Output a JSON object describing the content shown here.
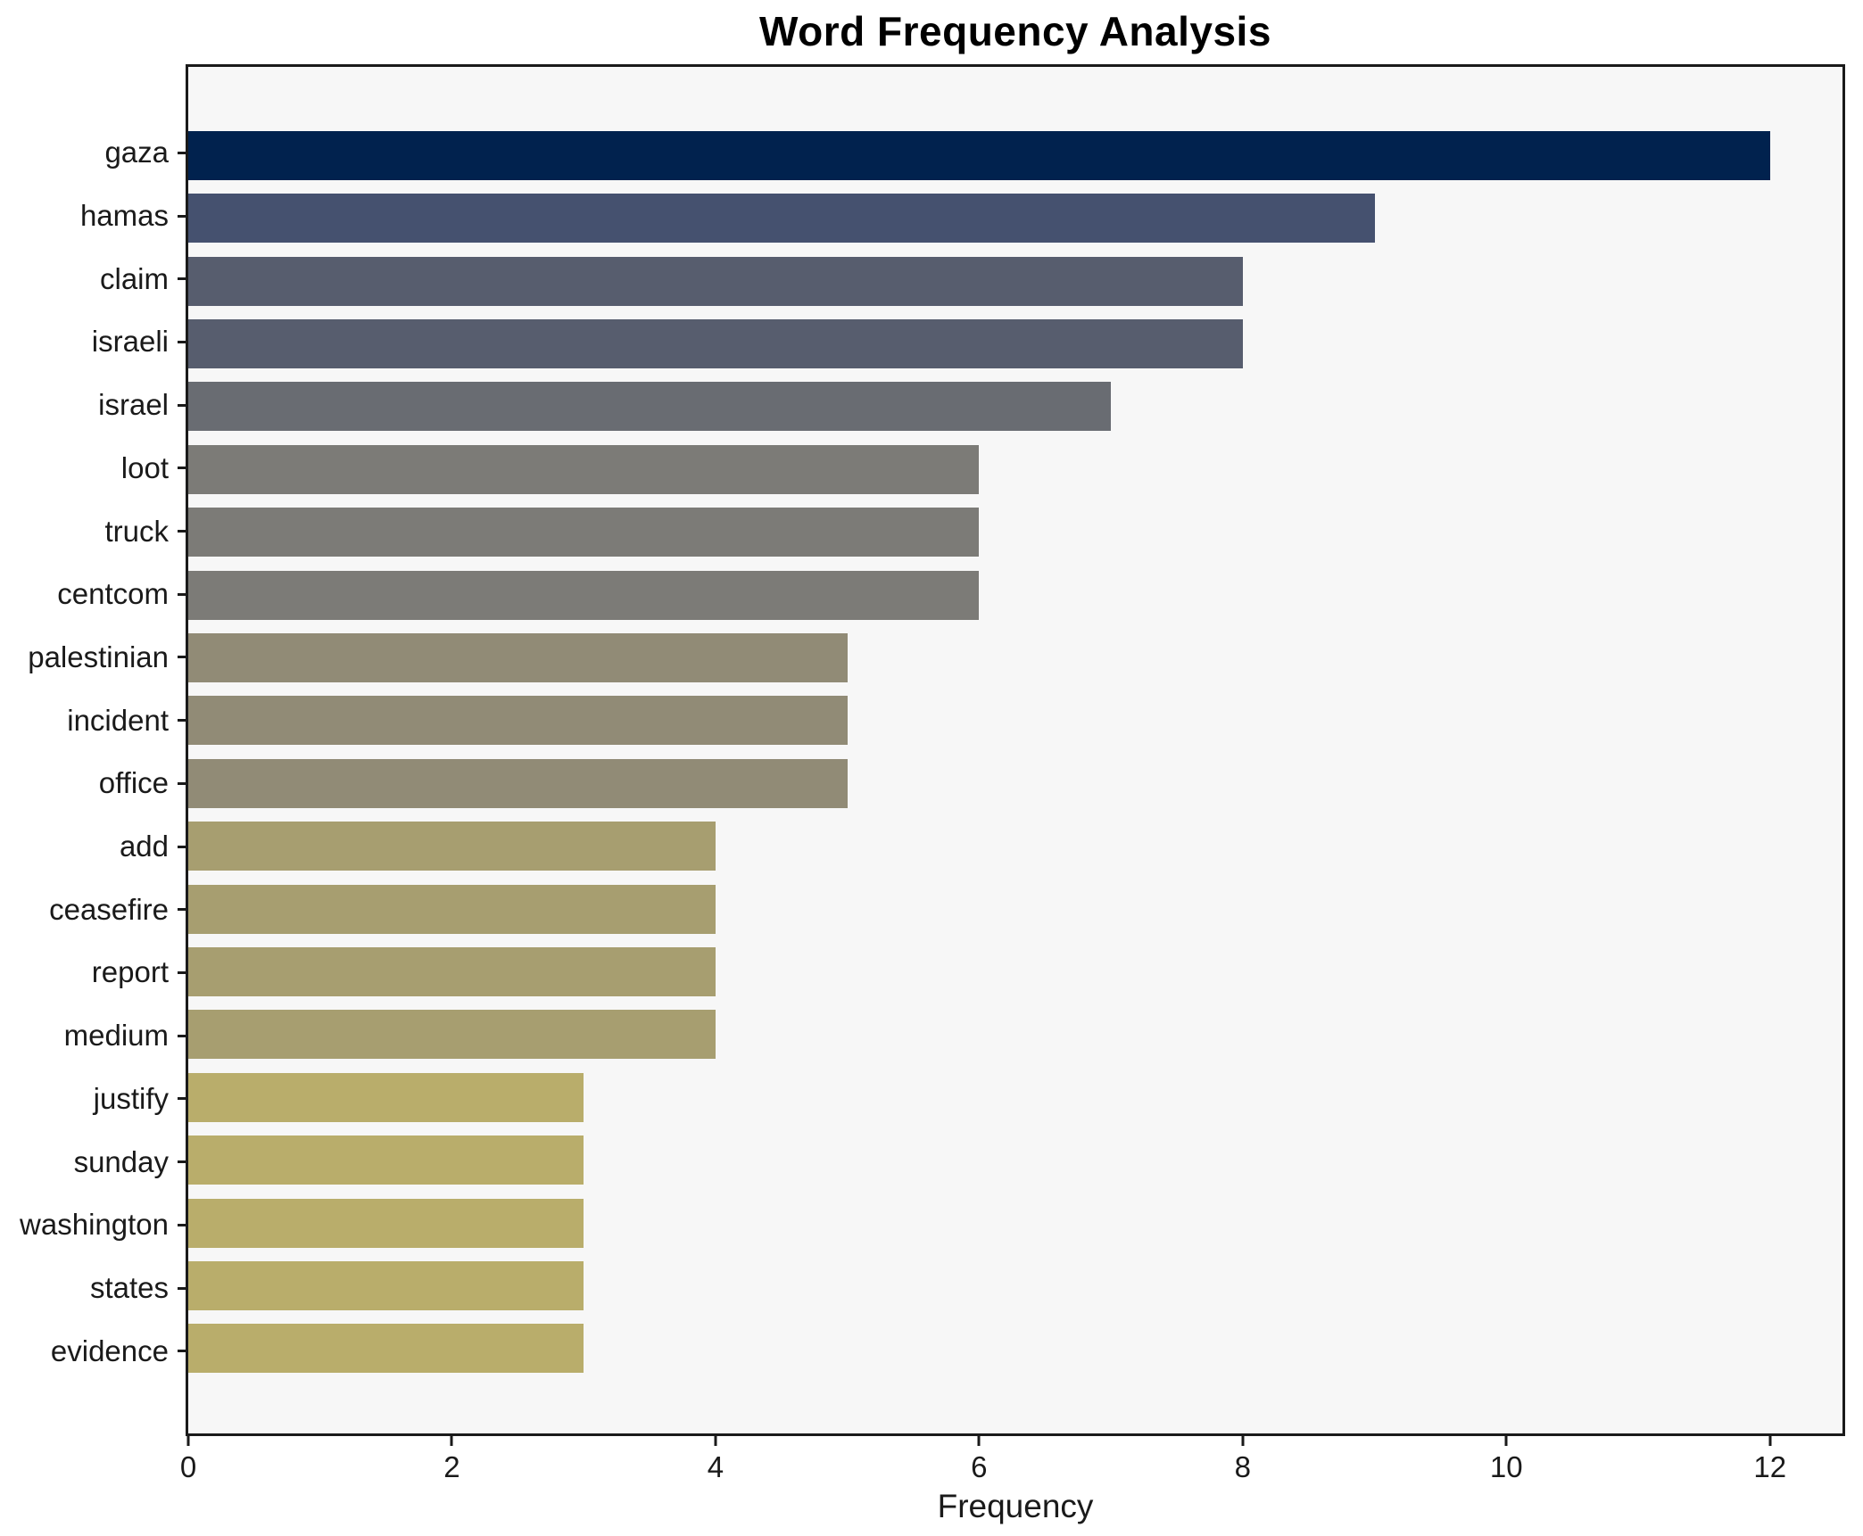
{
  "title": "Word Frequency Analysis",
  "chart_data": {
    "type": "bar",
    "orientation": "horizontal",
    "title": "Word Frequency Analysis",
    "xlabel": "Frequency",
    "ylabel": "",
    "categories": [
      "gaza",
      "hamas",
      "claim",
      "israeli",
      "israel",
      "loot",
      "truck",
      "centcom",
      "palestinian",
      "incident",
      "office",
      "add",
      "ceasefire",
      "report",
      "medium",
      "justify",
      "sunday",
      "washington",
      "states",
      "evidence"
    ],
    "values": [
      12,
      9,
      8,
      8,
      7,
      6,
      6,
      6,
      5,
      5,
      5,
      4,
      4,
      4,
      4,
      3,
      3,
      3,
      3,
      3
    ],
    "bar_colors": [
      "#01224e",
      "#45516f",
      "#575d6e",
      "#575d6e",
      "#696c72",
      "#7c7b77",
      "#7c7b77",
      "#7c7b77",
      "#918b76",
      "#918b76",
      "#918b76",
      "#a79e70",
      "#a79e70",
      "#a79e70",
      "#a79e70",
      "#b9ad6b",
      "#b9ad6b",
      "#b9ad6b",
      "#b9ad6b",
      "#b9ad6b"
    ],
    "xlim": [
      0,
      12.55
    ],
    "x_ticks": [
      0,
      2,
      4,
      6,
      8,
      10,
      12
    ],
    "grid": false,
    "legend": null,
    "plot_background": "#f7f7f7",
    "figure_background": "#ffffff",
    "spine_color": "#1a1a1a",
    "text_color": "#1a1a1a"
  }
}
